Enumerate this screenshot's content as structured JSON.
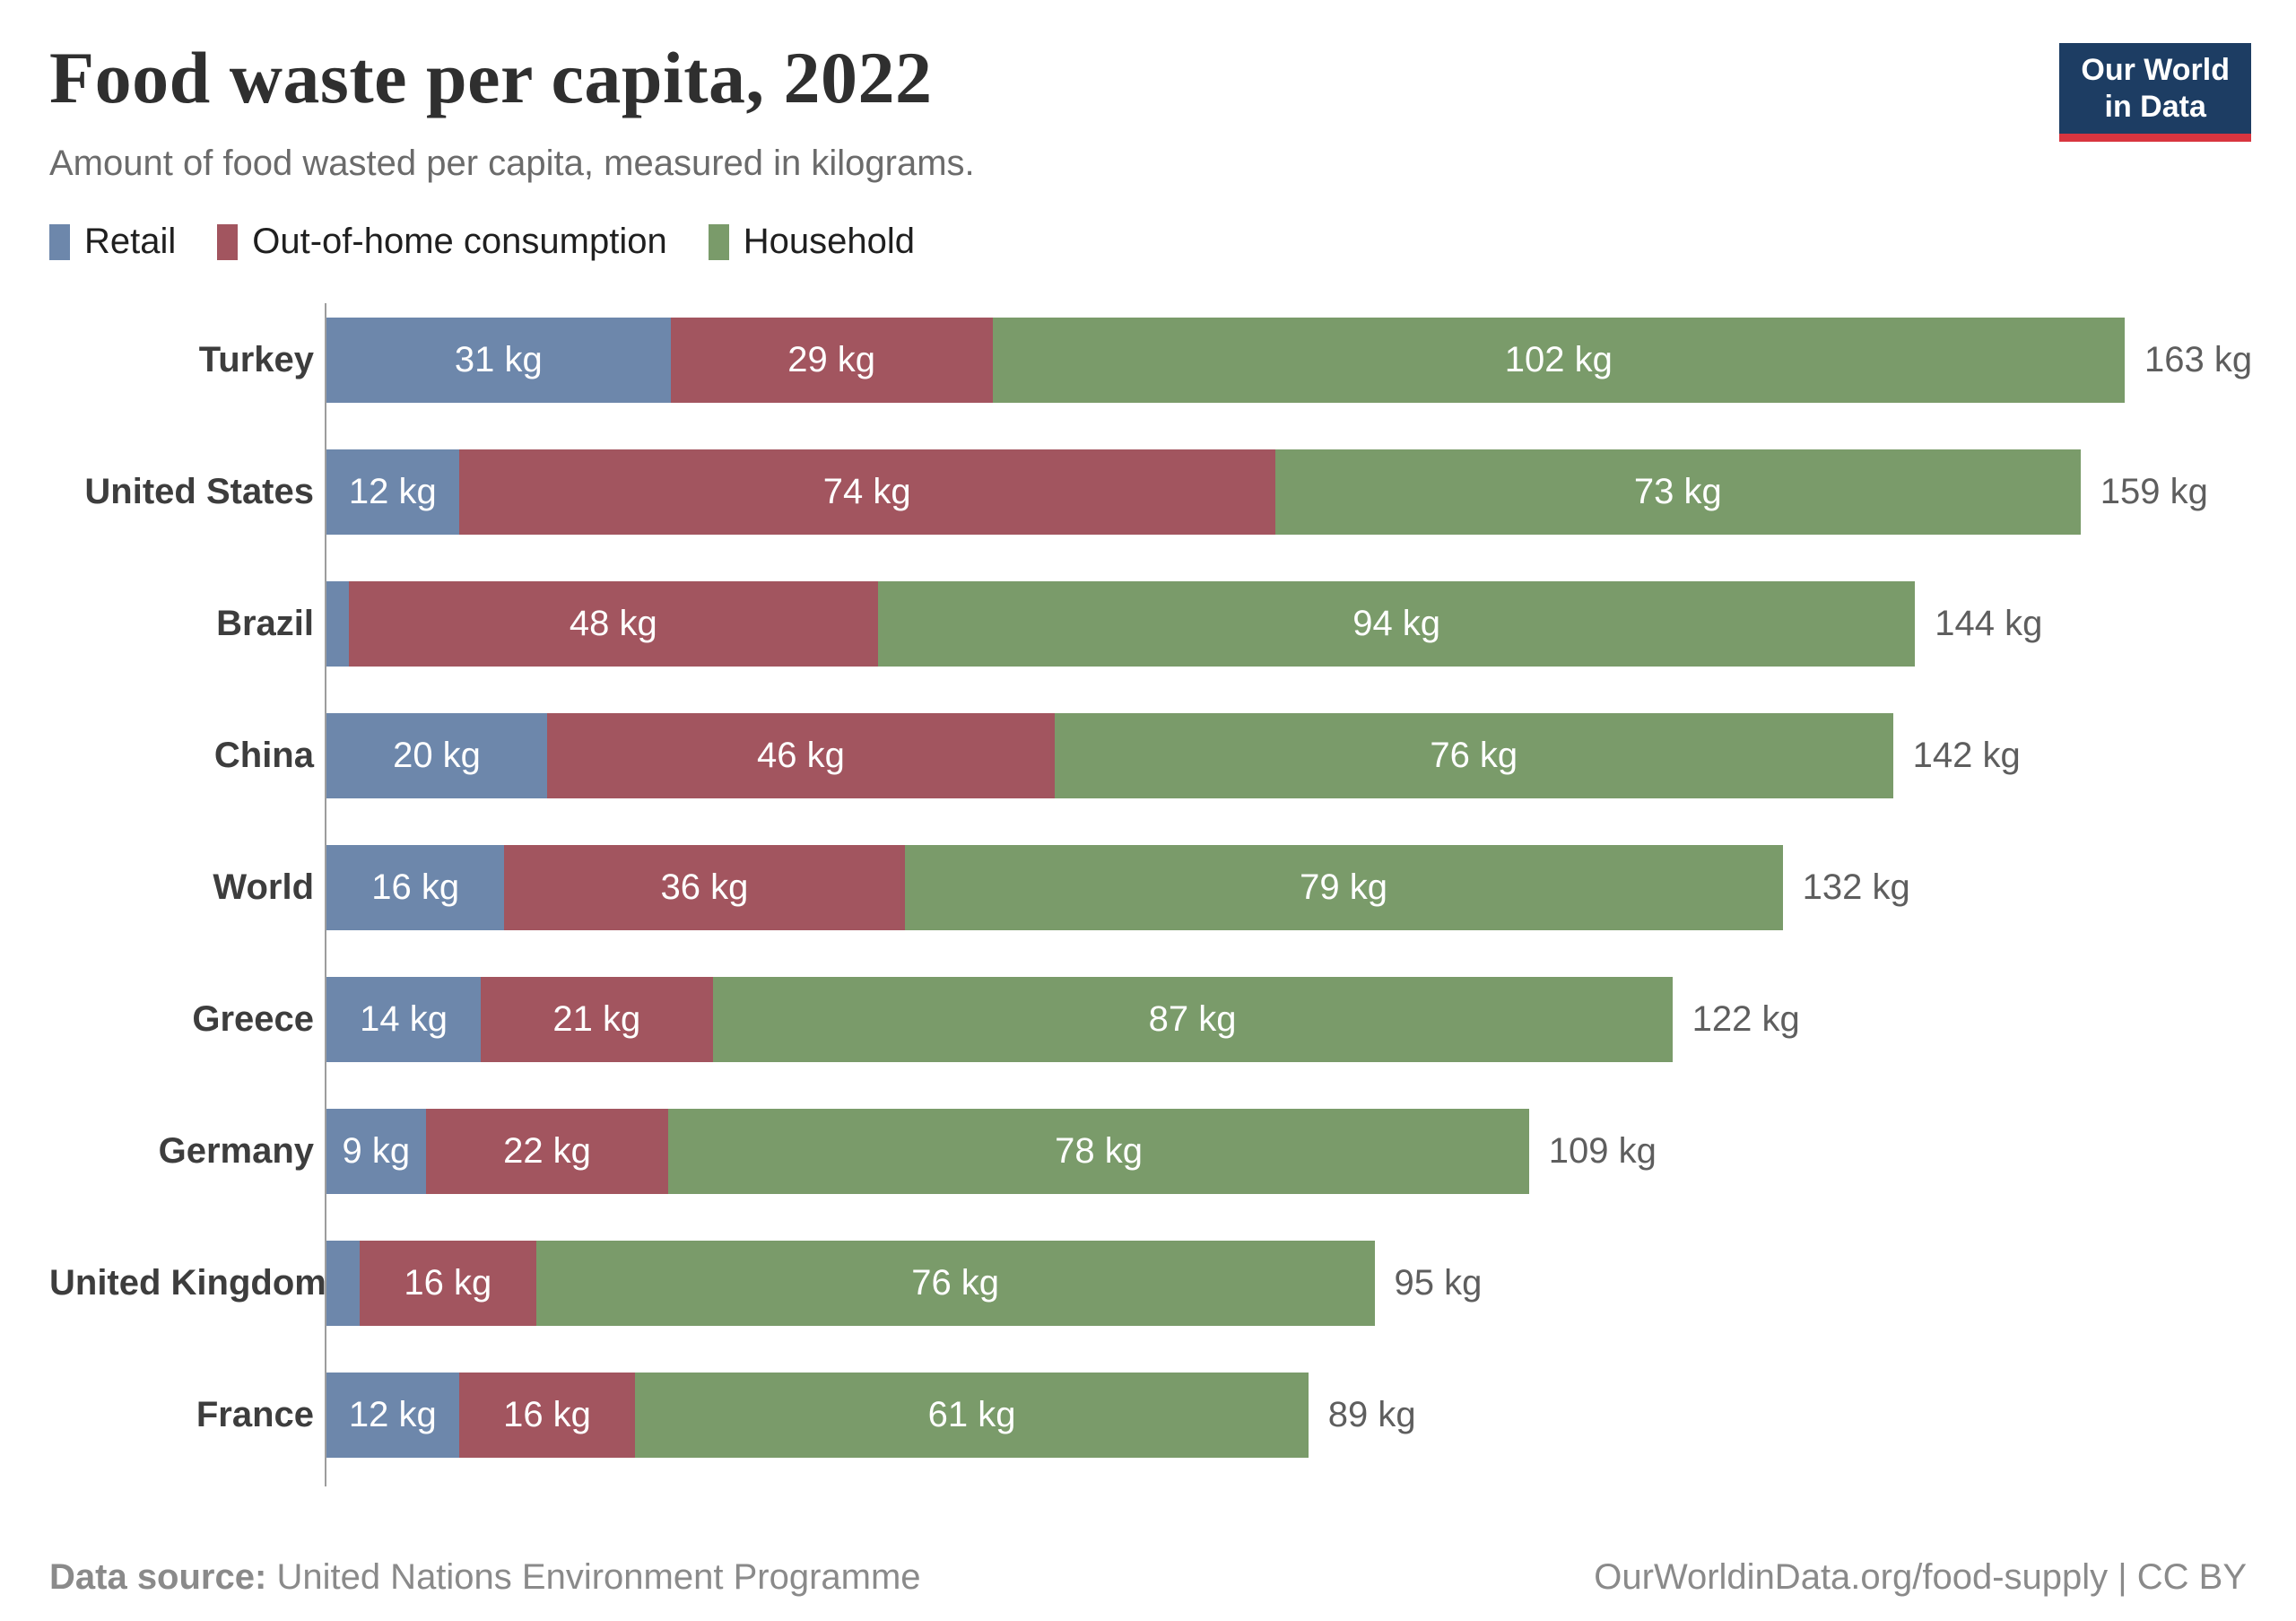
{
  "header": {
    "title": "Food waste per capita, 2022",
    "subtitle": "Amount of food wasted per capita, measured in kilograms."
  },
  "logo": {
    "line1": "Our World",
    "line2": "in Data",
    "background_color": "#1d3d63",
    "underline_color": "#d8353f"
  },
  "chart_data": {
    "type": "bar",
    "orientation": "horizontal",
    "stacked": true,
    "unit": "kg",
    "x_max_kg": 163,
    "grid": false,
    "legend_position": "top",
    "series": [
      {
        "name": "Retail",
        "key": "retail",
        "color": "#6d87ab"
      },
      {
        "name": "Out-of-home consumption",
        "key": "out-of-home",
        "color": "#a2555f"
      },
      {
        "name": "Household",
        "key": "household",
        "color": "#7a9b6a"
      }
    ],
    "rows": [
      {
        "country": "Turkey",
        "values": [
          31,
          29,
          102
        ],
        "labels": [
          "31 kg",
          "29 kg",
          "102 kg"
        ],
        "total": 163,
        "total_label": "163 kg"
      },
      {
        "country": "United States",
        "values": [
          12,
          74,
          73
        ],
        "labels": [
          "12 kg",
          "74 kg",
          "73 kg"
        ],
        "total": 159,
        "total_label": "159 kg"
      },
      {
        "country": "Brazil",
        "values": [
          2,
          48,
          94
        ],
        "labels": [
          "",
          "48 kg",
          "94 kg"
        ],
        "total": 144,
        "total_label": "144 kg"
      },
      {
        "country": "China",
        "values": [
          20,
          46,
          76
        ],
        "labels": [
          "20 kg",
          "46 kg",
          "76 kg"
        ],
        "total": 142,
        "total_label": "142 kg"
      },
      {
        "country": "World",
        "values": [
          16,
          36,
          79
        ],
        "labels": [
          "16 kg",
          "36 kg",
          "79 kg"
        ],
        "total": 132,
        "total_label": "132 kg"
      },
      {
        "country": "Greece",
        "values": [
          14,
          21,
          87
        ],
        "labels": [
          "14 kg",
          "21 kg",
          "87 kg"
        ],
        "total": 122,
        "total_label": "122 kg"
      },
      {
        "country": "Germany",
        "values": [
          9,
          22,
          78
        ],
        "labels": [
          "9 kg",
          "22 kg",
          "78 kg"
        ],
        "total": 109,
        "total_label": "109 kg"
      },
      {
        "country": "United Kingdom",
        "values": [
          3,
          16,
          76
        ],
        "labels": [
          "",
          "16 kg",
          "76 kg"
        ],
        "total": 95,
        "total_label": "95 kg"
      },
      {
        "country": "France",
        "values": [
          12,
          16,
          61
        ],
        "labels": [
          "12 kg",
          "16 kg",
          "61 kg"
        ],
        "total": 89,
        "total_label": "89 kg"
      }
    ]
  },
  "footer": {
    "source_label": "Data source:",
    "source_text": "United Nations Environment Programme",
    "right_text": "OurWorldinData.org/food-supply | CC BY"
  }
}
